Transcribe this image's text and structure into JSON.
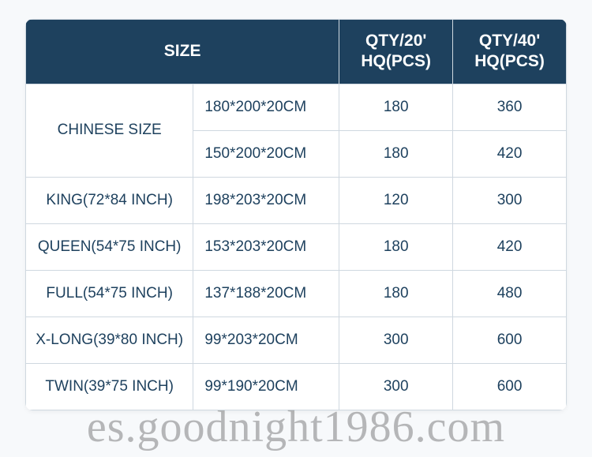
{
  "table": {
    "type": "table",
    "header_bg": "#1e415e",
    "header_fg": "#ffffff",
    "cell_fg": "#1e415e",
    "border_color": "#cfd8e0",
    "background_color": "#f7f9fb",
    "header_fontsize": 21,
    "cell_fontsize": 19,
    "border_radius": 10,
    "columns": [
      {
        "key": "size_label",
        "label": "SIZE",
        "width_pct": 31,
        "align": "center"
      },
      {
        "key": "dim",
        "label": "",
        "width_pct": 27,
        "align": "left"
      },
      {
        "key": "qty20",
        "label": "QTY/20' HQ(PCS)",
        "width_pct": 21,
        "align": "center"
      },
      {
        "key": "qty40",
        "label": "QTY/40' HQ(PCS)",
        "width_pct": 21,
        "align": "center"
      }
    ],
    "header": {
      "size": "SIZE",
      "qty20_line1": "QTY/20'",
      "qty20_line2": "HQ(PCS)",
      "qty40_line1": "QTY/40'",
      "qty40_line2": "HQ(PCS)"
    },
    "rows": [
      {
        "size_label": "CHINESE SIZE",
        "rowspan": 2,
        "dim": "180*200*20CM",
        "qty20": "180",
        "qty40": "360"
      },
      {
        "size_label": null,
        "dim": "150*200*20CM",
        "qty20": "180",
        "qty40": "420"
      },
      {
        "size_label": "KING(72*84 INCH)",
        "rowspan": 1,
        "dim": "198*203*20CM",
        "qty20": "120",
        "qty40": "300"
      },
      {
        "size_label": "QUEEN(54*75 INCH)",
        "rowspan": 1,
        "dim": "153*203*20CM",
        "qty20": "180",
        "qty40": "420"
      },
      {
        "size_label": "FULL(54*75 INCH)",
        "rowspan": 1,
        "dim": "137*188*20CM",
        "qty20": "180",
        "qty40": "480"
      },
      {
        "size_label": "X-LONG(39*80 INCH)",
        "rowspan": 1,
        "dim": "99*203*20CM",
        "qty20": "300",
        "qty40": "600"
      },
      {
        "size_label": "TWIN(39*75 INCH)",
        "rowspan": 1,
        "dim": "99*190*20CM",
        "qty20": "300",
        "qty40": "600"
      }
    ]
  },
  "watermark": {
    "text": "es.goodnight1986.com",
    "color": "rgba(90,90,90,0.42)",
    "fontsize": 56,
    "font_family": "Times New Roman"
  }
}
